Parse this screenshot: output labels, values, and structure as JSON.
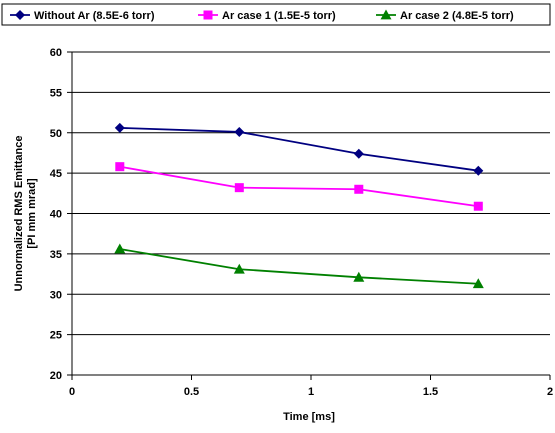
{
  "chart_data": {
    "type": "line",
    "title": "",
    "xlabel": "Time [ms]",
    "ylabel_lines": [
      "Unnormalized RMS Emittance",
      "[PI mm mrad]"
    ],
    "xlim": [
      0,
      2
    ],
    "ylim": [
      20,
      60
    ],
    "x_ticks": [
      0,
      0.5,
      1,
      1.5,
      2
    ],
    "x_tick_labels": [
      "0",
      "0.5",
      "1",
      "1.5",
      "2"
    ],
    "y_ticks": [
      20,
      25,
      30,
      35,
      40,
      45,
      50,
      55,
      60
    ],
    "y_tick_labels": [
      "20",
      "25",
      "30",
      "35",
      "40",
      "45",
      "50",
      "55",
      "60"
    ],
    "grid": "horizontal",
    "legend_position": "top",
    "series": [
      {
        "name": "Without Ar (8.5E-6 torr)",
        "color": "#000080",
        "marker": "diamond",
        "x": [
          0.2,
          0.7,
          1.2,
          1.7
        ],
        "y": [
          50.6,
          50.1,
          47.4,
          45.3
        ]
      },
      {
        "name": "Ar case 1 (1.5E-5 torr)",
        "color": "#FF00FF",
        "marker": "square",
        "x": [
          0.2,
          0.7,
          1.2,
          1.7
        ],
        "y": [
          45.8,
          43.2,
          43.0,
          40.9
        ]
      },
      {
        "name": "Ar case 2 (4.8E-5 torr)",
        "color": "#008000",
        "marker": "triangle",
        "x": [
          0.2,
          0.7,
          1.2,
          1.7
        ],
        "y": [
          35.6,
          33.1,
          32.1,
          31.3
        ]
      }
    ]
  }
}
